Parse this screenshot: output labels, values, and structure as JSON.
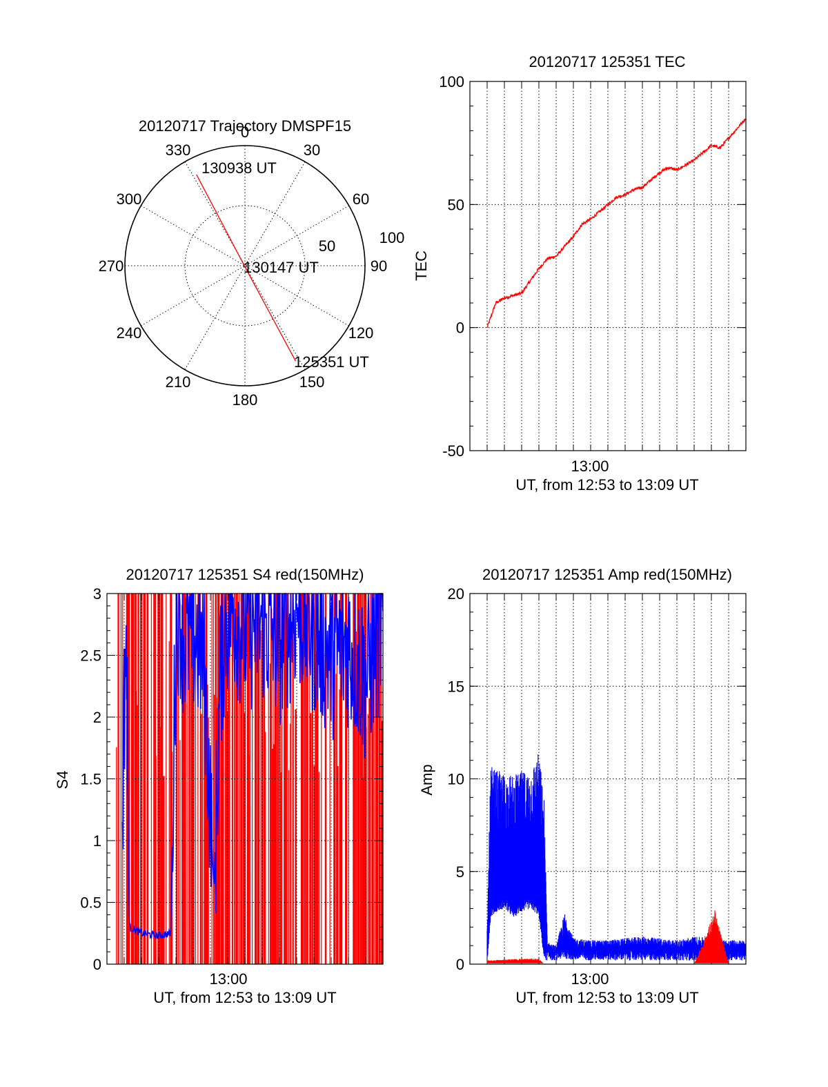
{
  "polar": {
    "title": "20120717 Trajectory DMSPF15",
    "angle_labels": [
      "0",
      "30",
      "60",
      "90",
      "120",
      "150",
      "180",
      "210",
      "240",
      "270",
      "300",
      "330"
    ],
    "radius_labels": [
      "50",
      "100"
    ],
    "start_label": "125351 UT",
    "mid_label": "130147 UT",
    "end_label": "130938 UT"
  },
  "chart_data": [
    {
      "type": "polar_trajectory",
      "title": "20120717 Trajectory DMSPF15",
      "rlim": [
        0,
        100
      ],
      "angle_ticks": [
        0,
        30,
        60,
        90,
        120,
        150,
        180,
        210,
        240,
        270,
        300,
        330
      ],
      "radius_ticks": [
        50,
        100
      ],
      "series": [
        {
          "color": "#ff0000",
          "points": [
            {
              "time": "125351 UT",
              "az": 152,
              "r": 90
            },
            {
              "time": "130147 UT",
              "az": 180,
              "r": 1
            },
            {
              "time": "130938 UT",
              "az": 332,
              "r": 86
            }
          ]
        }
      ]
    },
    {
      "type": "line",
      "title": "20120717 125351 TEC",
      "xlabel": "UT, from 12:53 to 13:09 UT",
      "ylabel": "TEC",
      "xtick_labels": [
        "13:00"
      ],
      "yticks": [
        -50,
        0,
        50,
        100
      ],
      "ylim": [
        -50,
        100
      ],
      "xlim_minutes": [
        53,
        69
      ],
      "grid": true,
      "series": [
        {
          "color": "#ff0000",
          "x_minutes": [
            54.0,
            54.5,
            55.0,
            55.5,
            56.0,
            56.5,
            57.0,
            57.5,
            58.0,
            58.5,
            59.0,
            59.5,
            60.0,
            60.5,
            61.0,
            61.5,
            62.0,
            62.5,
            63.0,
            63.5,
            64.0,
            64.5,
            65.0,
            65.5,
            66.0,
            66.5,
            67.0,
            67.5,
            68.0,
            68.5,
            69.0
          ],
          "values": [
            0,
            10,
            12,
            13,
            14,
            19,
            24,
            28,
            29,
            33,
            37,
            42,
            44,
            47,
            50,
            53,
            54,
            56,
            57,
            60,
            63,
            65,
            64,
            66,
            68,
            71,
            74,
            73,
            77,
            81,
            85
          ]
        }
      ]
    },
    {
      "type": "line",
      "title": "20120717 125351 S4 red(150MHz)",
      "xlabel": "UT, from 12:53 to 13:09 UT",
      "ylabel": "S4",
      "xtick_labels": [
        "13:00"
      ],
      "yticks": [
        0,
        0.5,
        1,
        1.5,
        2,
        2.5,
        3
      ],
      "ytick_labels": [
        "0",
        "0.5",
        "1",
        "1.5",
        "2",
        "2.5",
        "3"
      ],
      "ylim": [
        0,
        3
      ],
      "xlim_minutes": [
        53,
        69
      ],
      "grid": true,
      "series": [
        {
          "color": "#ff0000",
          "description": "dense spikes between 0 and 3 across full range"
        },
        {
          "color": "#0000ff",
          "x_minutes": [
            53.9,
            54.1,
            54.3,
            55.0,
            56.0,
            56.7,
            57.0,
            57.2,
            57.5,
            58.0,
            58.6,
            59.2,
            59.6,
            59.9,
            60.3,
            61.0,
            62.0,
            63.0,
            64.0,
            65.0,
            66.0,
            67.0,
            68.0,
            69.0
          ],
          "values": [
            1.35,
            2.8,
            0.3,
            0.25,
            0.23,
            0.25,
            2.8,
            2.9,
            2.6,
            2.7,
            2.5,
            0.6,
            2.4,
            2.8,
            2.9,
            2.7,
            2.8,
            2.6,
            2.9,
            2.7,
            2.5,
            2.6,
            2.3,
            2.8
          ]
        }
      ]
    },
    {
      "type": "line",
      "title": "20120717 125351 Amp red(150MHz)",
      "xlabel": "UT, from 12:53 to 13:09 UT",
      "ylabel": "Amp",
      "xtick_labels": [
        "13:00"
      ],
      "yticks": [
        0,
        5,
        10,
        15,
        20
      ],
      "ylim": [
        0,
        20
      ],
      "xlim_minutes": [
        53,
        69
      ],
      "grid": true,
      "series": [
        {
          "color": "#0000ff",
          "x_minutes": [
            54.0,
            54.2,
            54.5,
            55.0,
            55.5,
            56.0,
            56.5,
            57.0,
            57.3,
            57.5,
            58.0,
            58.5,
            59.0,
            60.0,
            61.0,
            62.0,
            63.0,
            64.0,
            65.0,
            66.0,
            67.0,
            68.0,
            69.0
          ],
          "lower": [
            0,
            2.5,
            2.8,
            3.0,
            2.5,
            2.8,
            3.0,
            2.6,
            0.2,
            0.2,
            0.2,
            0.3,
            0.2,
            0.2,
            0.2,
            0.2,
            0.2,
            0.2,
            0.2,
            0.2,
            0.2,
            0.2,
            0.2
          ],
          "upper": [
            1.8,
            10.7,
            10.5,
            10.3,
            10.2,
            10.4,
            10.5,
            11.5,
            9.0,
            1.2,
            1.0,
            2.8,
            1.4,
            1.3,
            1.3,
            1.4,
            1.5,
            1.4,
            1.3,
            1.5,
            1.4,
            1.3,
            1.3
          ]
        },
        {
          "color": "#ff0000",
          "x_minutes": [
            54.0,
            55.0,
            56.0,
            57.0,
            57.3,
            58.0,
            60.0,
            62.0,
            64.0,
            66.0,
            67.2,
            68.0,
            69.0
          ],
          "values": [
            0.2,
            0.25,
            0.3,
            0.3,
            0,
            0,
            0,
            0,
            0,
            0,
            2.9,
            0,
            0
          ]
        }
      ]
    }
  ],
  "tec": {
    "title": "20120717 125351 TEC",
    "ylabel": "TEC",
    "xlabel": "UT, from 12:53 to 13:09 UT",
    "xtick": "13:00",
    "yticks": [
      "-50",
      "0",
      "50",
      "100"
    ]
  },
  "s4": {
    "title": "20120717 125351 S4 red(150MHz)",
    "ylabel": "S4",
    "xlabel": "UT, from 12:53 to 13:09 UT",
    "xtick": "13:00",
    "yticks": [
      "0",
      "0.5",
      "1",
      "1.5",
      "2",
      "2.5",
      "3"
    ]
  },
  "amp": {
    "title": "20120717 125351 Amp red(150MHz)",
    "ylabel": "Amp",
    "xlabel": "UT, from 12:53 to 13:09 UT",
    "xtick": "13:00",
    "yticks": [
      "0",
      "5",
      "10",
      "15",
      "20"
    ]
  },
  "colors": {
    "red": "#ff0000",
    "blue": "#0000ff",
    "axis": "#000000"
  }
}
